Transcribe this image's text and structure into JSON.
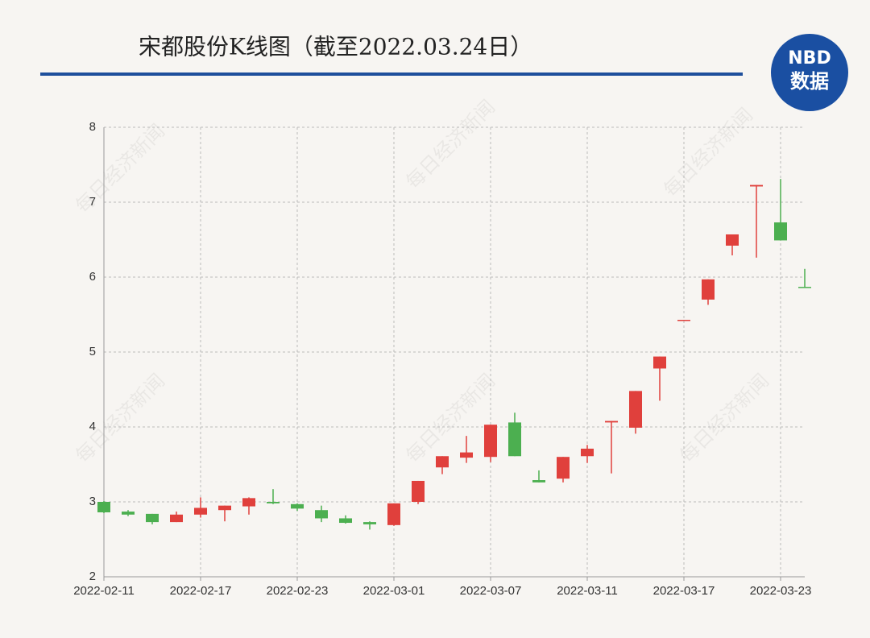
{
  "chart_data": {
    "type": "candlestick",
    "title": "宋都股份K线图（截至2022.03.24日）",
    "watermark": "每日经济新闻",
    "logo": {
      "top": "NBD",
      "bottom": "数据"
    },
    "categories": [
      "2022-02-11",
      null,
      null,
      null,
      "2022-02-17",
      null,
      null,
      null,
      "2022-02-23",
      null,
      null,
      null,
      "2022-03-01",
      null,
      null,
      null,
      "2022-03-07",
      null,
      null,
      null,
      "2022-03-11",
      null,
      null,
      null,
      "2022-03-17",
      null,
      null,
      null,
      "2022-03-23",
      null
    ],
    "open": [
      3.0,
      2.87,
      2.84,
      2.73,
      2.83,
      2.89,
      2.94,
      3.0,
      2.97,
      2.89,
      2.78,
      2.73,
      2.69,
      3.0,
      3.46,
      3.59,
      3.6,
      4.06,
      3.29,
      3.31,
      3.61,
      4.06,
      3.99,
      4.78,
      5.43,
      5.7,
      6.42,
      7.21,
      6.73,
      5.87
    ],
    "high": [
      3.01,
      2.89,
      2.84,
      2.87,
      3.06,
      2.95,
      3.06,
      3.17,
      2.98,
      2.95,
      2.82,
      2.74,
      2.98,
      3.28,
      3.61,
      3.88,
      4.03,
      4.19,
      3.42,
      3.6,
      3.76,
      4.08,
      4.48,
      4.94,
      5.43,
      5.97,
      6.57,
      7.23,
      7.31,
      6.11
    ],
    "low": [
      2.85,
      2.81,
      2.7,
      2.73,
      2.79,
      2.74,
      2.83,
      2.97,
      2.88,
      2.73,
      2.71,
      2.63,
      2.68,
      2.97,
      3.37,
      3.52,
      3.53,
      3.61,
      3.26,
      3.26,
      3.52,
      3.38,
      3.91,
      4.35,
      5.43,
      5.63,
      6.29,
      6.26,
      6.49,
      5.86
    ],
    "close": [
      2.86,
      2.83,
      2.73,
      2.83,
      2.92,
      2.95,
      3.05,
      2.98,
      2.91,
      2.78,
      2.72,
      2.7,
      2.98,
      3.28,
      3.61,
      3.66,
      4.03,
      3.61,
      3.26,
      3.6,
      3.71,
      4.08,
      4.48,
      4.94,
      5.43,
      5.97,
      6.57,
      7.23,
      6.49,
      5.86
    ],
    "up_color": "#e0403c",
    "down_color": "#4caf50",
    "ylim": [
      2,
      8
    ],
    "yticks": [
      2,
      3,
      4,
      5,
      6,
      7,
      8
    ],
    "grid": true
  }
}
